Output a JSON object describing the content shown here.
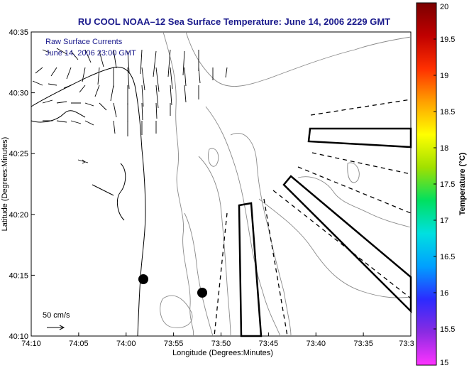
{
  "title": "RU COOL  NOAA–12  Sea Surface Temperature:  June 14, 2006 2229 GMT",
  "subtitle_line1": "Raw Surface Currents",
  "subtitle_line2": "June 14, 2006 23:00 GMT",
  "xlabel": "Longitude (Degrees:Minutes)",
  "ylabel": "Latitude (Degrees:Minutes)",
  "x_ticks": [
    "74:10",
    "74:05",
    "74:00",
    "73:55",
    "73:50",
    "73:45",
    "73:40",
    "73:35",
    "73:3"
  ],
  "y_ticks": [
    "40:35",
    "40:30",
    "40:25",
    "40:20",
    "40:15",
    "40:10"
  ],
  "scale_label": "50 cm/s",
  "colorbar": {
    "label": "Temperature (°C)",
    "ticks": [
      "20",
      "19.5",
      "19",
      "18.5",
      "18",
      "17.5",
      "17",
      "16.5",
      "16",
      "15.5",
      "15"
    ],
    "min": 15,
    "max": 20,
    "colors": [
      "#ff33ff",
      "#8a2be2",
      "#2b2bff",
      "#00a0ff",
      "#00e0e0",
      "#00e060",
      "#a0e000",
      "#ffff00",
      "#ffa000",
      "#ff3000",
      "#c00000",
      "#7a0000"
    ]
  }
}
